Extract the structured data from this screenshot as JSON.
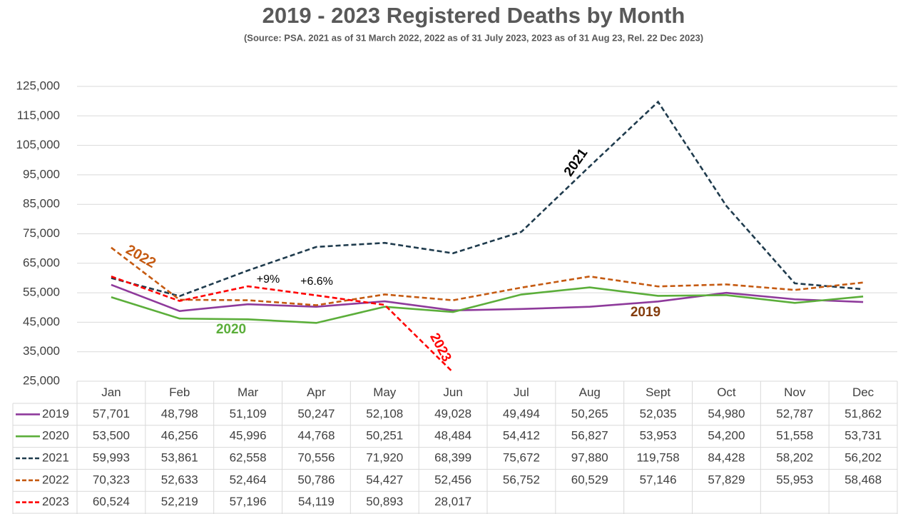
{
  "chart_data": {
    "type": "line",
    "title": "2019 - 2023 Registered Deaths by Month",
    "subtitle": "(Source: PSA.  2021 as of 31 March 2022, 2022 as of 31 July 2023, 2023 as of 31 Aug 23, Rel. 22 Dec 2023)",
    "categories": [
      "Jan",
      "Feb",
      "Mar",
      "Apr",
      "May",
      "Jun",
      "Jul",
      "Aug",
      "Sept",
      "Oct",
      "Nov",
      "Dec"
    ],
    "ylim": [
      25000,
      125000
    ],
    "yticks": [
      {
        "value": 25000,
        "label": "25,000"
      },
      {
        "value": 35000,
        "label": "35,000"
      },
      {
        "value": 45000,
        "label": "45,000"
      },
      {
        "value": 55000,
        "label": "55,000"
      },
      {
        "value": 65000,
        "label": "65,000"
      },
      {
        "value": 75000,
        "label": "75,000"
      },
      {
        "value": 85000,
        "label": "85,000"
      },
      {
        "value": 95000,
        "label": "95,000"
      },
      {
        "value": 105000,
        "label": "105,000"
      },
      {
        "value": 115000,
        "label": "115,000"
      },
      {
        "value": 125000,
        "label": "125,000"
      }
    ],
    "grid": true,
    "series": [
      {
        "name": "2019",
        "color": "#8e3a9b",
        "dashed": false,
        "values": [
          57701,
          48798,
          51109,
          50247,
          52108,
          49028,
          49494,
          50265,
          52035,
          54980,
          52787,
          51862
        ],
        "value_labels": [
          "57,701",
          "48,798",
          "51,109",
          "50,247",
          "52,108",
          "49,028",
          "49,494",
          "50,265",
          "52,035",
          "54,980",
          "52,787",
          "51,862"
        ]
      },
      {
        "name": "2020",
        "color": "#5bae3a",
        "dashed": false,
        "values": [
          53500,
          46256,
          45996,
          44768,
          50251,
          48484,
          54412,
          56827,
          53953,
          54200,
          51558,
          53731
        ],
        "value_labels": [
          "53,500",
          "46,256",
          "45,996",
          "44,768",
          "50,251",
          "48,484",
          "54,412",
          "56,827",
          "53,953",
          "54,200",
          "51,558",
          "53,731"
        ]
      },
      {
        "name": "2021",
        "color": "#1f3b4d",
        "dashed": true,
        "values": [
          59993,
          53861,
          62558,
          70556,
          71920,
          68399,
          75672,
          97880,
          119758,
          84428,
          58202,
          56202
        ],
        "value_labels": [
          "59,993",
          "53,861",
          "62,558",
          "70,556",
          "71,920",
          "68,399",
          "75,672",
          "97,880",
          "119,758",
          "84,428",
          "58,202",
          "56,202"
        ]
      },
      {
        "name": "2022",
        "color": "#c55a11",
        "dashed": true,
        "values": [
          70323,
          52633,
          52464,
          50786,
          54427,
          52456,
          56752,
          60529,
          57146,
          57829,
          55953,
          58468
        ],
        "value_labels": [
          "70,323",
          "52,633",
          "52,464",
          "50,786",
          "54,427",
          "52,456",
          "56,752",
          "60,529",
          "57,146",
          "57,829",
          "55,953",
          "58,468"
        ]
      },
      {
        "name": "2023",
        "color": "#ff0000",
        "dashed": true,
        "values": [
          60524,
          52219,
          57196,
          54119,
          50893,
          28017,
          null,
          null,
          null,
          null,
          null,
          null
        ],
        "value_labels": [
          "60,524",
          "52,219",
          "57,196",
          "54,119",
          "50,893",
          "28,017",
          null,
          null,
          null,
          null,
          null,
          null
        ]
      }
    ],
    "annotations": [
      {
        "text": "2022",
        "color": "#c55a11"
      },
      {
        "text": "2020",
        "color": "#5bae3a"
      },
      {
        "text": "2021",
        "color": "#000000"
      },
      {
        "text": "2023",
        "color": "#ff0000"
      },
      {
        "text": "2019",
        "color": "#843c0c"
      },
      {
        "text": "+9%",
        "color": "#000000"
      },
      {
        "text": "+6.6%",
        "color": "#000000"
      }
    ]
  }
}
